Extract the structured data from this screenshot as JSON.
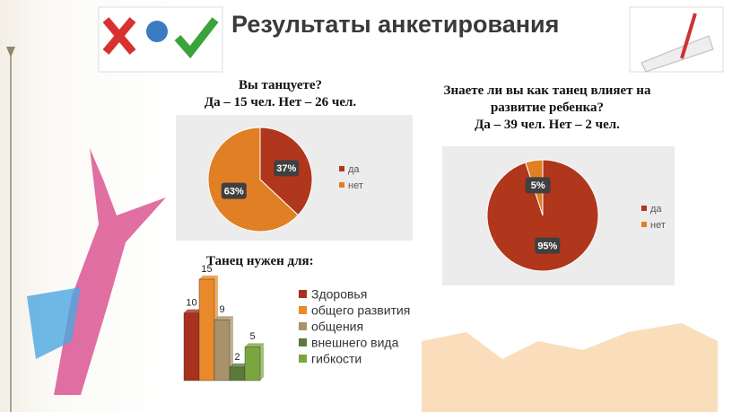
{
  "header": {
    "title": "Результаты анкетирования"
  },
  "chart_data": [
    {
      "type": "pie",
      "title": "Вы танцуете?",
      "subtitle": "Да – 15 чел. Нет – 26 чел.",
      "categories": [
        "да",
        "нет"
      ],
      "values": [
        37,
        63
      ],
      "value_labels": [
        "37%",
        "63%"
      ],
      "colors": [
        "#b0361c",
        "#e07f24"
      ]
    },
    {
      "type": "pie",
      "title": "Знаете ли вы как танец влияет на развитие ребенка?",
      "subtitle": "Да – 39 чел. Нет – 2 чел.",
      "categories": [
        "да",
        "нет"
      ],
      "values": [
        95,
        5
      ],
      "value_labels": [
        "95%",
        "5%"
      ],
      "colors": [
        "#b0361c",
        "#e07f24"
      ]
    },
    {
      "type": "bar",
      "title": "Танец нужен для:",
      "series": [
        {
          "name": "Здоровья",
          "color": "#a8321e",
          "values": [
            10
          ]
        },
        {
          "name": "общего развития",
          "color": "#e8892a",
          "values": [
            15
          ]
        },
        {
          "name": "общения",
          "color": "#a8926a",
          "values": [
            9
          ]
        },
        {
          "name": "внешнего вида",
          "color": "#5b7a3c",
          "values": [
            2
          ]
        },
        {
          "name": "гибкости",
          "color": "#7aa640",
          "values": [
            5
          ]
        }
      ]
    }
  ]
}
